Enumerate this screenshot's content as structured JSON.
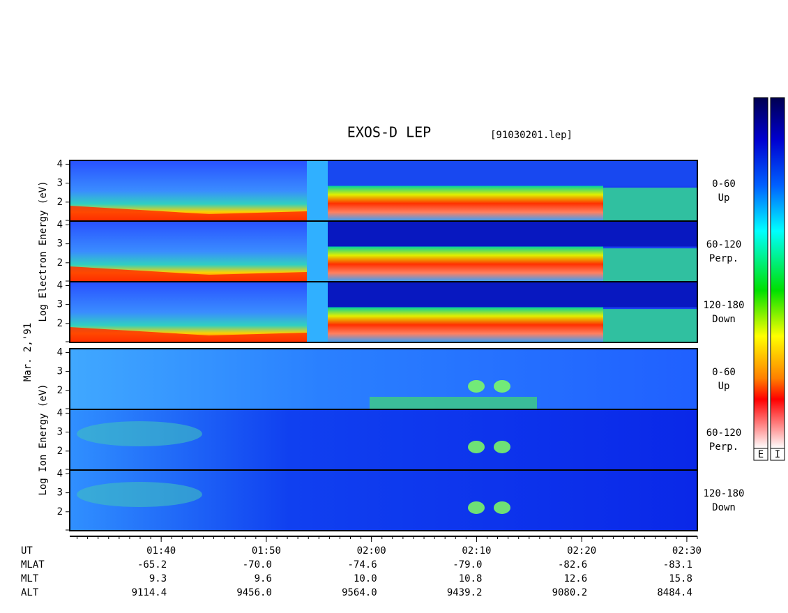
{
  "header": {
    "title": "EXOS-D LEP",
    "file": "[91030201.lep]",
    "date": "Mar. 2,'91"
  },
  "groups": [
    {
      "label": "Log Electron Energy (eV)",
      "panels": [
        {
          "angle": "0-60",
          "direction": "Up"
        },
        {
          "angle": "60-120",
          "direction": "Perp."
        },
        {
          "angle": "120-180",
          "direction": "Down"
        }
      ]
    },
    {
      "label": "Log Ion Energy (eV)",
      "panels": [
        {
          "angle": "0-60",
          "direction": "Up"
        },
        {
          "angle": "60-120",
          "direction": "Perp."
        },
        {
          "angle": "120-180",
          "direction": "Down"
        }
      ]
    }
  ],
  "energy_axis": {
    "ylim": [
      1,
      4.2
    ],
    "yticks": [
      2,
      3,
      4
    ]
  },
  "time_axis": {
    "name": "UT",
    "xlim": [
      91.3,
      151
    ],
    "xticks": [
      {
        "value": 100,
        "label": "01:40"
      },
      {
        "value": 110,
        "label": "01:50"
      },
      {
        "value": 120,
        "label": "02:00"
      },
      {
        "value": 130,
        "label": "02:10"
      },
      {
        "value": 140,
        "label": "02:20"
      },
      {
        "value": 150,
        "label": "02:30"
      }
    ]
  },
  "ephemeris": {
    "rows": [
      {
        "name": "MLAT",
        "values": [
          "-65.2",
          "-70.0",
          "-74.6",
          "-79.0",
          "-82.6",
          "-83.1"
        ]
      },
      {
        "name": "MLT",
        "values": [
          "9.3",
          "9.6",
          "10.0",
          "10.8",
          "12.6",
          "15.8"
        ]
      },
      {
        "name": "ALT",
        "values": [
          "9114.4",
          "9456.0",
          "9564.0",
          "9439.2",
          "9080.2",
          "8484.4"
        ]
      }
    ]
  },
  "colorbars": [
    "E",
    "I"
  ]
}
